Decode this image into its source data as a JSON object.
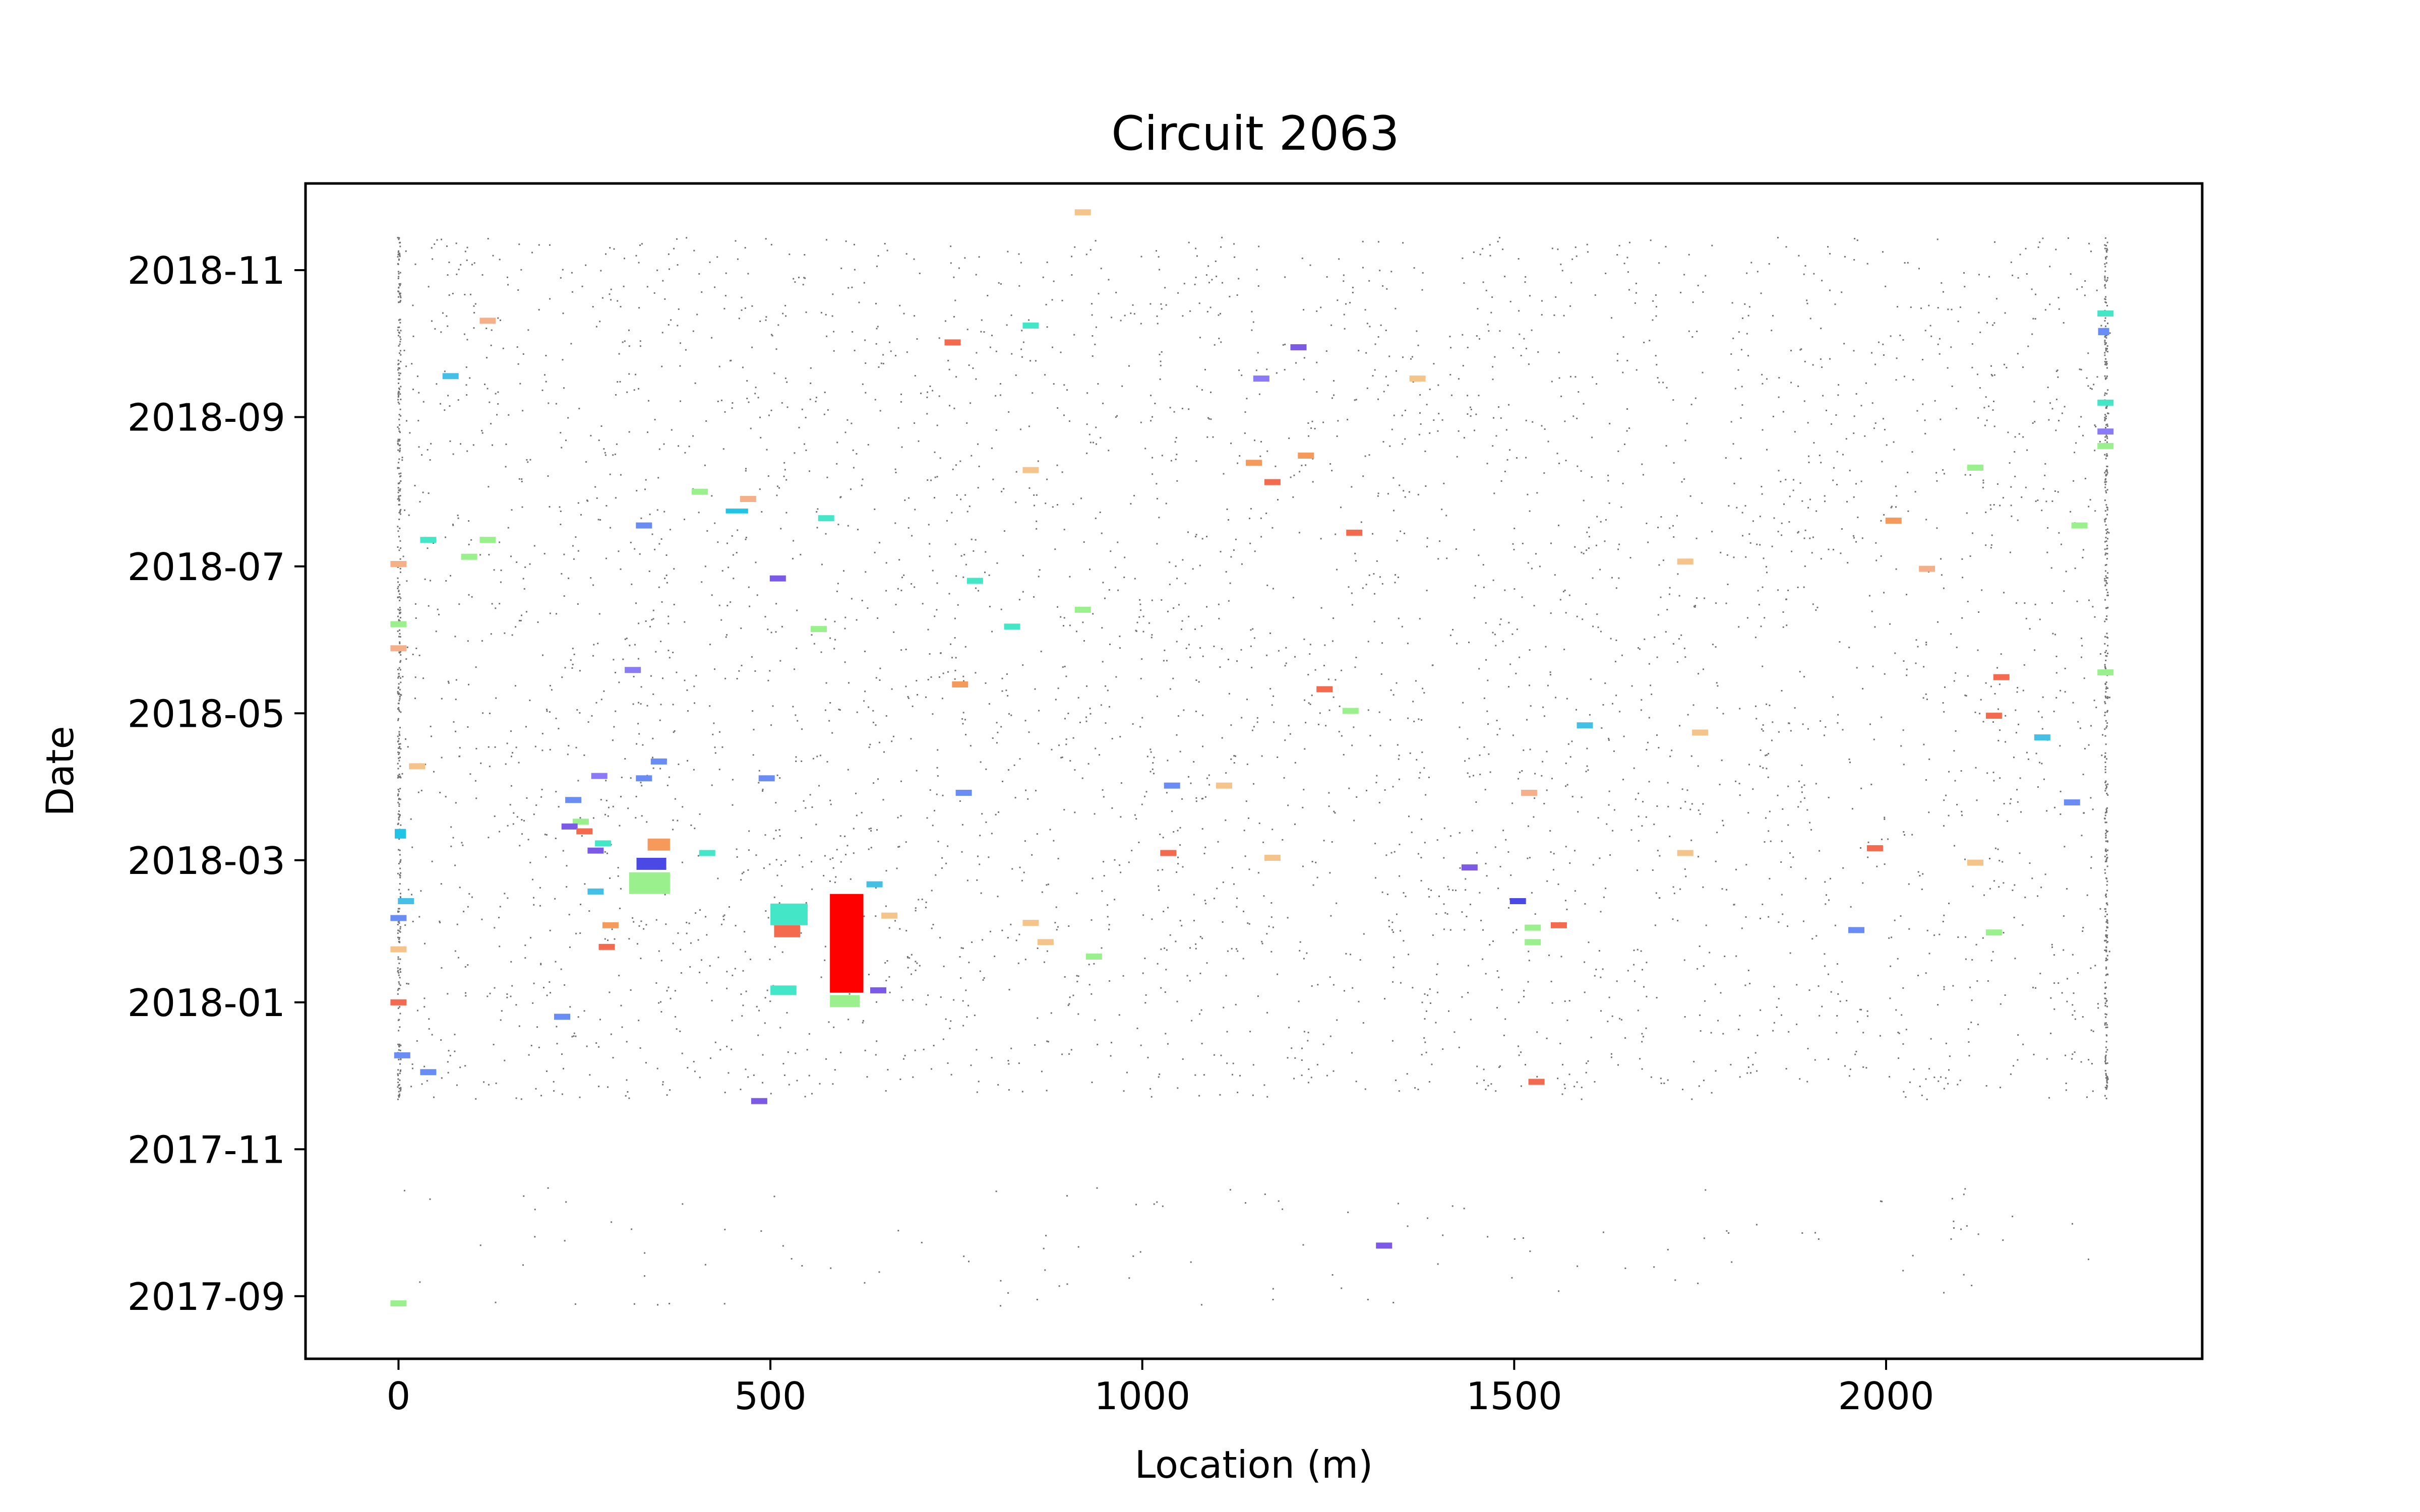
{
  "chart_data": {
    "type": "scatter",
    "title": "Circuit 2063",
    "xlabel": "Location (m)",
    "ylabel": "Date",
    "xlim": [
      -125,
      2425
    ],
    "ylim": [
      "2017-08-06",
      "2018-12-07"
    ],
    "x_ticks": [
      0,
      500,
      1000,
      1500,
      2000
    ],
    "x_tick_labels": [
      "0",
      "500",
      "1000",
      "1500",
      "2000"
    ],
    "y_ticks": [
      "2017-09-01",
      "2017-11-01",
      "2018-01-01",
      "2018-03-01",
      "2018-05-01",
      "2018-07-01",
      "2018-09-01",
      "2018-11-01"
    ],
    "y_tick_labels": [
      "2017-09",
      "2017-11",
      "2018-01",
      "2018-03",
      "2018-05",
      "2018-07",
      "2018-09",
      "2018-11"
    ],
    "grid": false,
    "legend": "none",
    "background_points": {
      "color": "#000000",
      "description_of_extent_location": [
        0,
        2300
      ],
      "date_range": [
        "2017-11-22",
        "2018-11-15"
      ]
    },
    "clusters": [
      {
        "x0": 580,
        "x1": 625,
        "y0": "2018-01-05",
        "y1": "2018-02-15",
        "color": "#ff0000"
      },
      {
        "x0": 580,
        "x1": 620,
        "y0": "2017-12-30",
        "y1": "2018-01-04",
        "color": "#9af08c"
      },
      {
        "x0": 500,
        "x1": 550,
        "y0": "2018-02-02",
        "y1": "2018-02-11",
        "color": "#44e6c8"
      },
      {
        "x0": 505,
        "x1": 540,
        "y0": "2018-01-28",
        "y1": "2018-02-02",
        "color": "#f46a4e"
      },
      {
        "x0": 500,
        "x1": 535,
        "y0": "2018-01-04",
        "y1": "2018-01-08",
        "color": "#44e6c8"
      },
      {
        "x0": 310,
        "x1": 365,
        "y0": "2018-02-15",
        "y1": "2018-02-24",
        "color": "#9af08c"
      },
      {
        "x0": 320,
        "x1": 360,
        "y0": "2018-02-25",
        "y1": "2018-03-02",
        "color": "#4b49e6"
      },
      {
        "x0": 335,
        "x1": 365,
        "y0": "2018-03-05",
        "y1": "2018-03-10",
        "color": "#f59a5a"
      },
      {
        "x0": -5,
        "x1": 10,
        "y0": "2018-03-10",
        "y1": "2018-03-14",
        "color": "#1fc4e6"
      },
      {
        "x0": 2285,
        "x1": 2300,
        "y0": "2018-10-05",
        "y1": "2018-10-08",
        "color": "#6a8cf5"
      },
      {
        "x0": 440,
        "x1": 470,
        "y0": "2018-07-23",
        "y1": "2018-07-25",
        "color": "#1fc4e6"
      }
    ],
    "small_markers": [
      {
        "x": 920,
        "y": "2018-11-25",
        "color": "#f5c48a"
      },
      {
        "x": 120,
        "y": "2018-10-11",
        "color": "#f5b08a"
      },
      {
        "x": 850,
        "y": "2018-10-09",
        "color": "#44e6c8"
      },
      {
        "x": 745,
        "y": "2018-10-02",
        "color": "#f46a4e"
      },
      {
        "x": 1210,
        "y": "2018-09-30",
        "color": "#7a5ae6"
      },
      {
        "x": 2295,
        "y": "2018-10-14",
        "color": "#44e6c8"
      },
      {
        "x": 70,
        "y": "2018-09-18",
        "color": "#44c0e6"
      },
      {
        "x": 1160,
        "y": "2018-09-17",
        "color": "#8a7af5"
      },
      {
        "x": 1370,
        "y": "2018-09-17",
        "color": "#f5c48a"
      },
      {
        "x": 2295,
        "y": "2018-09-07",
        "color": "#44e6c8"
      },
      {
        "x": 2295,
        "y": "2018-08-26",
        "color": "#8a7af5"
      },
      {
        "x": 2295,
        "y": "2018-08-20",
        "color": "#9af08c"
      },
      {
        "x": 1220,
        "y": "2018-08-16",
        "color": "#f59a5a"
      },
      {
        "x": 1150,
        "y": "2018-08-13",
        "color": "#f59a5a"
      },
      {
        "x": 850,
        "y": "2018-08-10",
        "color": "#f5c48a"
      },
      {
        "x": 2120,
        "y": "2018-08-11",
        "color": "#9af08c"
      },
      {
        "x": 1175,
        "y": "2018-08-05",
        "color": "#f46a4e"
      },
      {
        "x": 405,
        "y": "2018-08-01",
        "color": "#9af08c"
      },
      {
        "x": 470,
        "y": "2018-07-29",
        "color": "#f5b08a"
      },
      {
        "x": 575,
        "y": "2018-07-21",
        "color": "#44e6c8"
      },
      {
        "x": 330,
        "y": "2018-07-18",
        "color": "#6a8cf5"
      },
      {
        "x": 2010,
        "y": "2018-07-20",
        "color": "#f59a5a"
      },
      {
        "x": 2260,
        "y": "2018-07-18",
        "color": "#9af08c"
      },
      {
        "x": 1285,
        "y": "2018-07-15",
        "color": "#f46a4e"
      },
      {
        "x": 40,
        "y": "2018-07-12",
        "color": "#44e6c8"
      },
      {
        "x": 120,
        "y": "2018-07-12",
        "color": "#9af08c"
      },
      {
        "x": 95,
        "y": "2018-07-05",
        "color": "#9af08c"
      },
      {
        "x": 0,
        "y": "2018-07-02",
        "color": "#f5b08a"
      },
      {
        "x": 1730,
        "y": "2018-07-03",
        "color": "#f5c48a"
      },
      {
        "x": 2055,
        "y": "2018-06-30",
        "color": "#f5b08a"
      },
      {
        "x": 510,
        "y": "2018-06-26",
        "color": "#7a5ae6"
      },
      {
        "x": 775,
        "y": "2018-06-25",
        "color": "#44e6c8"
      },
      {
        "x": 920,
        "y": "2018-06-13",
        "color": "#9af08c"
      },
      {
        "x": 0,
        "y": "2018-06-07",
        "color": "#9af08c"
      },
      {
        "x": 565,
        "y": "2018-06-05",
        "color": "#9af08c"
      },
      {
        "x": 825,
        "y": "2018-06-06",
        "color": "#44e6c8"
      },
      {
        "x": 0,
        "y": "2018-05-28",
        "color": "#f5b08a"
      },
      {
        "x": 315,
        "y": "2018-05-19",
        "color": "#8a7af5"
      },
      {
        "x": 2295,
        "y": "2018-05-18",
        "color": "#9af08c"
      },
      {
        "x": 755,
        "y": "2018-05-13",
        "color": "#f59a5a"
      },
      {
        "x": 1245,
        "y": "2018-05-11",
        "color": "#f46a4e"
      },
      {
        "x": 2155,
        "y": "2018-05-16",
        "color": "#f46a4e"
      },
      {
        "x": 1280,
        "y": "2018-05-02",
        "color": "#9af08c"
      },
      {
        "x": 2145,
        "y": "2018-04-30",
        "color": "#f46a4e"
      },
      {
        "x": 1595,
        "y": "2018-04-26",
        "color": "#44c0e6"
      },
      {
        "x": 1750,
        "y": "2018-04-23",
        "color": "#f5c48a"
      },
      {
        "x": 2210,
        "y": "2018-04-21",
        "color": "#44c0e6"
      },
      {
        "x": 350,
        "y": "2018-04-11",
        "color": "#6a8cf5"
      },
      {
        "x": 25,
        "y": "2018-04-09",
        "color": "#f5c48a"
      },
      {
        "x": 270,
        "y": "2018-04-05",
        "color": "#8a7af5"
      },
      {
        "x": 330,
        "y": "2018-04-04",
        "color": "#6a8cf5"
      },
      {
        "x": 495,
        "y": "2018-04-04",
        "color": "#6a8cf5"
      },
      {
        "x": 1040,
        "y": "2018-04-01",
        "color": "#6a8cf5"
      },
      {
        "x": 1110,
        "y": "2018-04-01",
        "color": "#f5c48a"
      },
      {
        "x": 760,
        "y": "2018-03-29",
        "color": "#6a8cf5"
      },
      {
        "x": 1520,
        "y": "2018-03-29",
        "color": "#f5b08a"
      },
      {
        "x": 2250,
        "y": "2018-03-25",
        "color": "#6a8cf5"
      },
      {
        "x": 235,
        "y": "2018-03-26",
        "color": "#6a8cf5"
      },
      {
        "x": 245,
        "y": "2018-03-17",
        "color": "#9af08c"
      },
      {
        "x": 230,
        "y": "2018-03-15",
        "color": "#7a5ae6"
      },
      {
        "x": 250,
        "y": "2018-03-13",
        "color": "#f46a4e"
      },
      {
        "x": 275,
        "y": "2018-03-08",
        "color": "#44e6c8"
      },
      {
        "x": 265,
        "y": "2018-03-05",
        "color": "#7a5ae6"
      },
      {
        "x": 415,
        "y": "2018-03-04",
        "color": "#44e6c8"
      },
      {
        "x": 1035,
        "y": "2018-03-04",
        "color": "#f46a4e"
      },
      {
        "x": 1175,
        "y": "2018-03-02",
        "color": "#f5c48a"
      },
      {
        "x": 1730,
        "y": "2018-03-04",
        "color": "#f5c48a"
      },
      {
        "x": 1985,
        "y": "2018-03-06",
        "color": "#f46a4e"
      },
      {
        "x": 2120,
        "y": "2018-02-28",
        "color": "#f5c48a"
      },
      {
        "x": 1440,
        "y": "2018-02-26",
        "color": "#7a5ae6"
      },
      {
        "x": 640,
        "y": "2018-02-19",
        "color": "#44c0e6"
      },
      {
        "x": 265,
        "y": "2018-02-16",
        "color": "#44c0e6"
      },
      {
        "x": 10,
        "y": "2018-02-12",
        "color": "#44c0e6"
      },
      {
        "x": 1505,
        "y": "2018-02-12",
        "color": "#4b49e6"
      },
      {
        "x": 660,
        "y": "2018-02-06",
        "color": "#f5c48a"
      },
      {
        "x": 0,
        "y": "2018-02-05",
        "color": "#6a8cf5"
      },
      {
        "x": 850,
        "y": "2018-02-03",
        "color": "#f5c48a"
      },
      {
        "x": 1525,
        "y": "2018-02-01",
        "color": "#9af08c"
      },
      {
        "x": 1560,
        "y": "2018-02-02",
        "color": "#f46a4e"
      },
      {
        "x": 285,
        "y": "2018-02-02",
        "color": "#f59a5a"
      },
      {
        "x": 1960,
        "y": "2018-01-31",
        "color": "#6a8cf5"
      },
      {
        "x": 2145,
        "y": "2018-01-30",
        "color": "#9af08c"
      },
      {
        "x": 870,
        "y": "2018-01-26",
        "color": "#f5c48a"
      },
      {
        "x": 1525,
        "y": "2018-01-26",
        "color": "#9af08c"
      },
      {
        "x": 280,
        "y": "2018-01-24",
        "color": "#f46a4e"
      },
      {
        "x": 0,
        "y": "2018-01-23",
        "color": "#f5c48a"
      },
      {
        "x": 935,
        "y": "2018-01-20",
        "color": "#9af08c"
      },
      {
        "x": 645,
        "y": "2018-01-06",
        "color": "#7a5ae6"
      },
      {
        "x": 0,
        "y": "2018-01-01",
        "color": "#f46a4e"
      },
      {
        "x": 220,
        "y": "2017-12-26",
        "color": "#6a8cf5"
      },
      {
        "x": 5,
        "y": "2017-12-10",
        "color": "#6a8cf5"
      },
      {
        "x": 40,
        "y": "2017-12-03",
        "color": "#6a8cf5"
      },
      {
        "x": 1530,
        "y": "2017-11-29",
        "color": "#f46a4e"
      },
      {
        "x": 485,
        "y": "2017-11-21",
        "color": "#7a5ae6"
      },
      {
        "x": 1325,
        "y": "2017-09-22",
        "color": "#7a5ae6"
      },
      {
        "x": 0,
        "y": "2017-08-29",
        "color": "#9af08c"
      }
    ]
  }
}
